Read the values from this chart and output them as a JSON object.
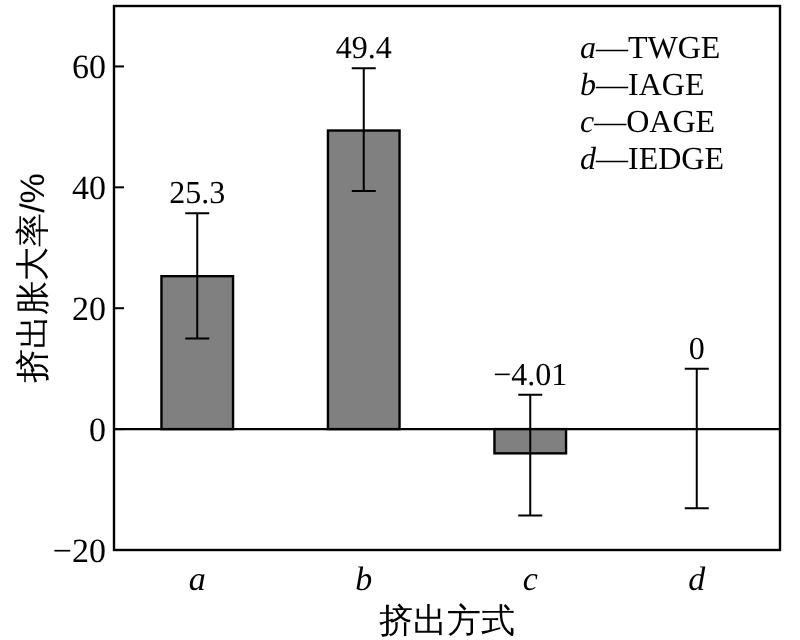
{
  "chart_data": {
    "type": "bar",
    "xlabel": "挤出方式",
    "ylabel": "挤出胀大率/%",
    "categories": [
      "a",
      "b",
      "c",
      "d"
    ],
    "values": [
      25.3,
      49.4,
      -4.01,
      0
    ],
    "errors": [
      [
        15.0,
        35.7
      ],
      [
        39.4,
        59.7
      ],
      [
        -14.3,
        5.7
      ],
      [
        -13.1,
        10.0
      ]
    ],
    "color": "#808080",
    "data_labels": true,
    "ylim": [
      -20,
      70
    ],
    "yticks": [
      {
        "value": -20,
        "label": "−20"
      },
      0,
      20,
      40,
      60
    ],
    "ref_lines": [
      {
        "axis": "y",
        "value": 0
      }
    ],
    "annotations": [
      "a—TWGE",
      "b—IAGE",
      "c—OAGE",
      "d—IEDGE"
    ],
    "grid": false
  }
}
